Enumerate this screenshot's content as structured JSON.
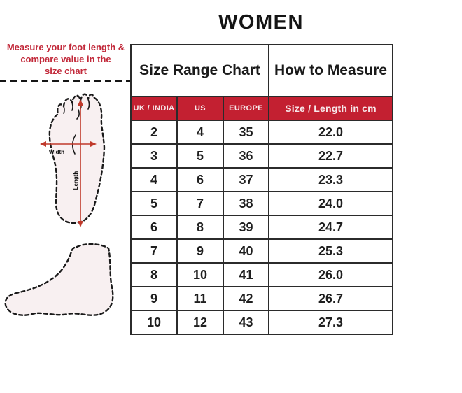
{
  "page": {
    "title": "WOMEN"
  },
  "instruction": {
    "line1": "Measure your foot length &",
    "line2": "compare value in the",
    "line3": "size chart"
  },
  "diagram": {
    "width_label": "Width",
    "length_label": "Length"
  },
  "table": {
    "group_headers": {
      "left": "Size Range Chart",
      "right": "How to Measure"
    },
    "columns": [
      "UK / INDIA",
      "US",
      "EUROPE",
      "Size / Length in cm"
    ],
    "rows": [
      {
        "uk": "2",
        "us": "4",
        "eu": "35",
        "cm": "22.0"
      },
      {
        "uk": "3",
        "us": "5",
        "eu": "36",
        "cm": "22.7"
      },
      {
        "uk": "4",
        "us": "6",
        "eu": "37",
        "cm": "23.3"
      },
      {
        "uk": "5",
        "us": "7",
        "eu": "38",
        "cm": "24.0"
      },
      {
        "uk": "6",
        "us": "8",
        "eu": "39",
        "cm": "24.7"
      },
      {
        "uk": "7",
        "us": "9",
        "eu": "40",
        "cm": "25.3"
      },
      {
        "uk": "8",
        "us": "10",
        "eu": "41",
        "cm": "26.0"
      },
      {
        "uk": "9",
        "us": "11",
        "eu": "42",
        "cm": "26.7"
      },
      {
        "uk": "10",
        "us": "12",
        "eu": "43",
        "cm": "27.3"
      }
    ]
  },
  "colors": {
    "accent_red": "#c32031",
    "instruction_red": "#c2293a",
    "band_pink": "#f8e9f1",
    "band_blue": "#e1f1f3",
    "foot_fill": "#f8f0f1",
    "border_dark": "#2b2b2b"
  },
  "chart_data": {
    "type": "table",
    "title": "WOMEN",
    "columns": [
      "UK / INDIA",
      "US",
      "EUROPE",
      "Size / Length in cm"
    ],
    "rows": [
      [
        "2",
        "4",
        "35",
        "22.0"
      ],
      [
        "3",
        "5",
        "36",
        "22.7"
      ],
      [
        "4",
        "6",
        "37",
        "23.3"
      ],
      [
        "5",
        "7",
        "38",
        "24.0"
      ],
      [
        "6",
        "8",
        "39",
        "24.7"
      ],
      [
        "7",
        "9",
        "40",
        "25.3"
      ],
      [
        "8",
        "10",
        "41",
        "26.0"
      ],
      [
        "9",
        "11",
        "42",
        "26.7"
      ],
      [
        "10",
        "12",
        "43",
        "27.3"
      ]
    ]
  }
}
